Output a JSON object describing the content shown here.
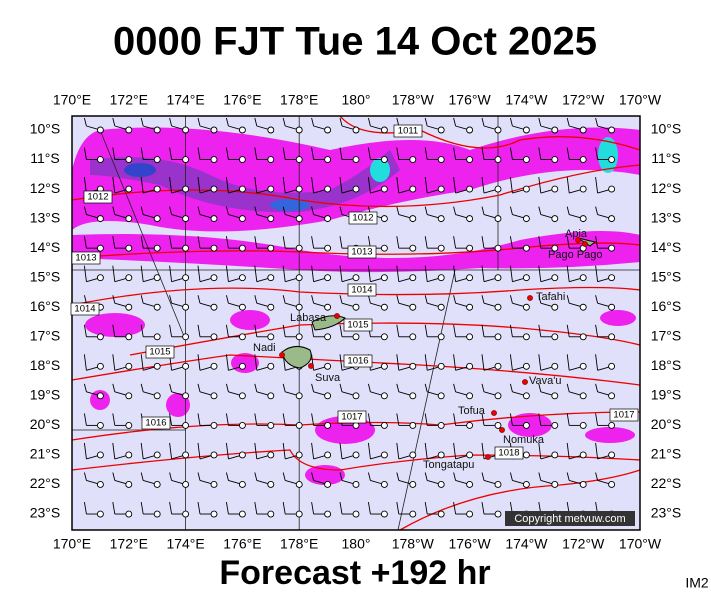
{
  "title": "0000 FJT Tue 14 Oct 2025",
  "footer": "Forecast +192 hr",
  "corner_label": "IM2",
  "copyright": "Copyright metvuw.com",
  "lon_labels": [
    "170°E",
    "172°E",
    "174°E",
    "176°E",
    "178°E",
    "180°",
    "178°W",
    "176°W",
    "174°W",
    "172°W",
    "170°W"
  ],
  "lat_labels": [
    "10°S",
    "11°S",
    "12°S",
    "13°S",
    "14°S",
    "15°S",
    "16°S",
    "17°S",
    "18°S",
    "19°S",
    "20°S",
    "21°S",
    "22°S",
    "23°S"
  ],
  "places": [
    "Apia",
    "Pago Pago",
    "Tafahi",
    "Labasa",
    "Nadi",
    "Suva",
    "Vava'u",
    "Tofua",
    "Nomuka",
    "Tongatapu"
  ],
  "isobar_labels": [
    "1011",
    "1012",
    "1012",
    "1013",
    "1013",
    "1014",
    "1014",
    "1015",
    "1015",
    "1016",
    "1016",
    "1017",
    "1017",
    "1018"
  ]
}
